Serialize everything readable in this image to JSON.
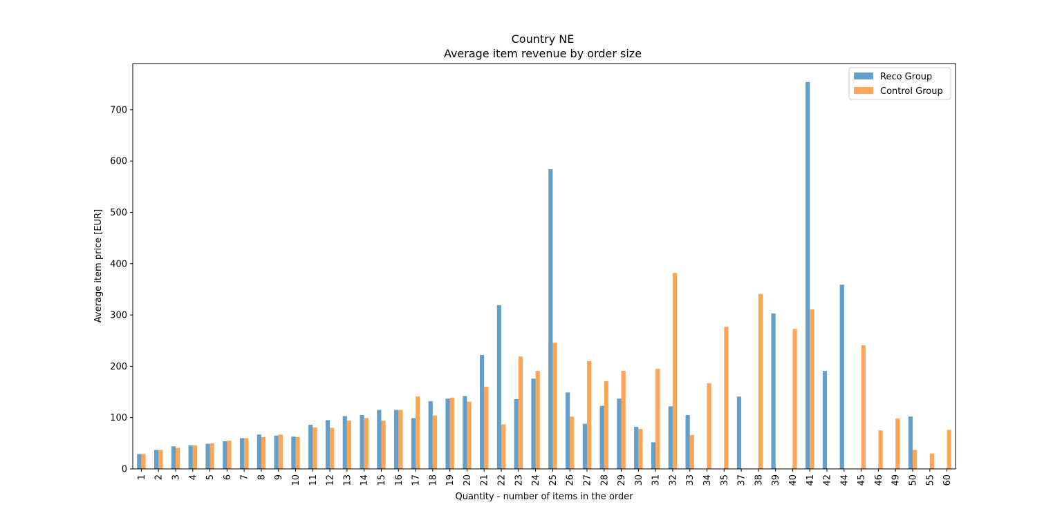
{
  "chart_data": {
    "type": "bar",
    "title": "Country NE",
    "subtitle": "Average item revenue by order size",
    "xlabel": "Quantity - number of items in the order",
    "ylabel": "Average item price [EUR]",
    "ylim": [
      0,
      790
    ],
    "yticks": [
      0,
      100,
      200,
      300,
      400,
      500,
      600,
      700
    ],
    "grid": false,
    "legend_position": "top-right",
    "categories": [
      "1",
      "2",
      "3",
      "4",
      "5",
      "6",
      "7",
      "8",
      "9",
      "10",
      "11",
      "12",
      "13",
      "14",
      "15",
      "16",
      "17",
      "18",
      "19",
      "20",
      "21",
      "22",
      "23",
      "24",
      "25",
      "26",
      "27",
      "28",
      "29",
      "30",
      "31",
      "32",
      "33",
      "34",
      "35",
      "37",
      "38",
      "39",
      "40",
      "41",
      "42",
      "44",
      "45",
      "46",
      "49",
      "50",
      "55",
      "60"
    ],
    "series": [
      {
        "name": "Reco Group",
        "color": "#1f77b4",
        "values": [
          29,
          37,
          44,
          46,
          49,
          54,
          60,
          67,
          65,
          63,
          86,
          95,
          103,
          105,
          115,
          115,
          99,
          132,
          137,
          142,
          222,
          319,
          136,
          176,
          584,
          149,
          88,
          123,
          137,
          82,
          52,
          122,
          105,
          null,
          null,
          141,
          null,
          303,
          null,
          754,
          191,
          359,
          null,
          null,
          null,
          102,
          null,
          null
        ]
      },
      {
        "name": "Control Group",
        "color": "#ff7f0e",
        "values": [
          29,
          37,
          41,
          46,
          50,
          55,
          60,
          62,
          67,
          62,
          81,
          80,
          94,
          99,
          94,
          115,
          141,
          104,
          139,
          131,
          160,
          87,
          219,
          191,
          246,
          102,
          210,
          171,
          191,
          78,
          195,
          382,
          66,
          167,
          277,
          null,
          341,
          null,
          273,
          311,
          null,
          null,
          241,
          75,
          98,
          37,
          30,
          76
        ]
      }
    ]
  }
}
